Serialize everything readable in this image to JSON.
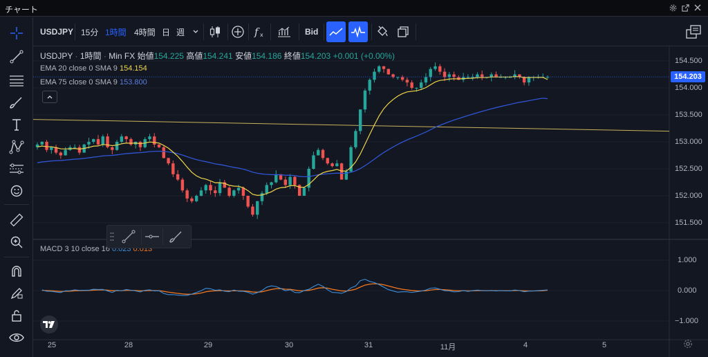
{
  "window": {
    "title": "チャート"
  },
  "toolbar": {
    "symbol": "USDJPY",
    "tf_15m": "15分",
    "tf_1h": "1時間",
    "tf_4h": "4時間",
    "tf_day": "日",
    "tf_week": "週",
    "price_source": "Bid"
  },
  "legend": {
    "symbol": "USDJPY",
    "interval": "1時間",
    "source": "Min FX",
    "open_label": "始値",
    "open_value": "154.225",
    "high_label": "高値",
    "high_value": "154.241",
    "low_label": "安値",
    "low_value": "154.186",
    "close_label": "終値",
    "close_value": "154.203",
    "change": "+0.001 (+0.00%)",
    "ema20_label": "EMA 20 close 0 SMA 9",
    "ema20_value": "154.154",
    "ema75_label": "EMA 75 close 0 SMA 9",
    "ema75_value": "153.800",
    "macd_label": "MACD 3 10 close 16",
    "macd_value1": "0.023",
    "macd_value2": "0.013"
  },
  "colors": {
    "background": "#131722",
    "up_candle": "#26a69a",
    "down_candle": "#ef5350",
    "ema20": "#f0d64a",
    "ema75": "#2f55d4",
    "macd_line": "#3e8ed9",
    "signal_line": "#f2781f",
    "accent": "#2962ff",
    "hline": "#c9b35a"
  },
  "price_axis": {
    "ticks": [
      "154.500",
      "154.000",
      "153.500",
      "153.000",
      "152.500",
      "152.000",
      "151.500"
    ],
    "current_price": "154.203"
  },
  "macd_axis": {
    "ticks": [
      "1.000",
      "0.000",
      "−1.000"
    ]
  },
  "time_axis": {
    "ticks": [
      "25",
      "28",
      "29",
      "30",
      "31",
      "11月",
      "4",
      "5"
    ]
  },
  "drawing_toolbar": {
    "items": [
      "trendline-icon",
      "horizontal-ray-icon",
      "brush-icon"
    ]
  },
  "chart_data": {
    "type": "candlestick",
    "symbol": "USDJPY",
    "interval": "1時間",
    "x_ticks": [
      "25",
      "28",
      "29",
      "30",
      "31",
      "11月",
      "4",
      "5"
    ],
    "y_ticks": [
      154.5,
      154.0,
      153.5,
      153.0,
      152.5,
      152.0,
      151.5
    ],
    "ylim": [
      151.3,
      154.9
    ],
    "horizontal_line": 153.3,
    "close_series": [
      152.95,
      153.0,
      152.85,
      152.9,
      152.8,
      152.75,
      152.85,
      152.9,
      152.9,
      152.8,
      152.95,
      153.0,
      153.05,
      152.95,
      153.1,
      152.9,
      152.85,
      153.0,
      153.1,
      153.05,
      152.95,
      153.0,
      152.9,
      153.05,
      153.1,
      152.95,
      152.9,
      152.7,
      152.6,
      152.4,
      152.3,
      152.1,
      151.95,
      151.9,
      152.0,
      152.1,
      152.2,
      152.1,
      152.05,
      152.25,
      152.15,
      152.0,
      152.1,
      152.15,
      152.0,
      151.8,
      151.65,
      151.9,
      152.05,
      152.2,
      152.25,
      152.4,
      152.3,
      152.2,
      152.35,
      152.2,
      152.0,
      152.15,
      152.5,
      152.75,
      152.85,
      152.7,
      152.6,
      152.55,
      152.6,
      152.3,
      152.45,
      152.9,
      153.2,
      153.6,
      153.95,
      154.15,
      154.3,
      154.4,
      154.35,
      154.25,
      154.2,
      154.2,
      154.15,
      154.1,
      154.0,
      154.0,
      154.1,
      154.2,
      154.35,
      154.4,
      154.3,
      154.2,
      154.25,
      154.2,
      154.15,
      154.2,
      154.2,
      154.2,
      154.25,
      154.2,
      154.2,
      154.25,
      154.2,
      154.2,
      154.2,
      154.2,
      154.25,
      154.2,
      154.1,
      154.2,
      154.2,
      154.2,
      154.2,
      154.203
    ],
    "ema20_last": 154.154,
    "ema75_last": 153.8,
    "macd": {
      "macd_last": 0.023,
      "signal_last": 0.013,
      "ylim": [
        -1.2,
        1.2
      ]
    }
  }
}
